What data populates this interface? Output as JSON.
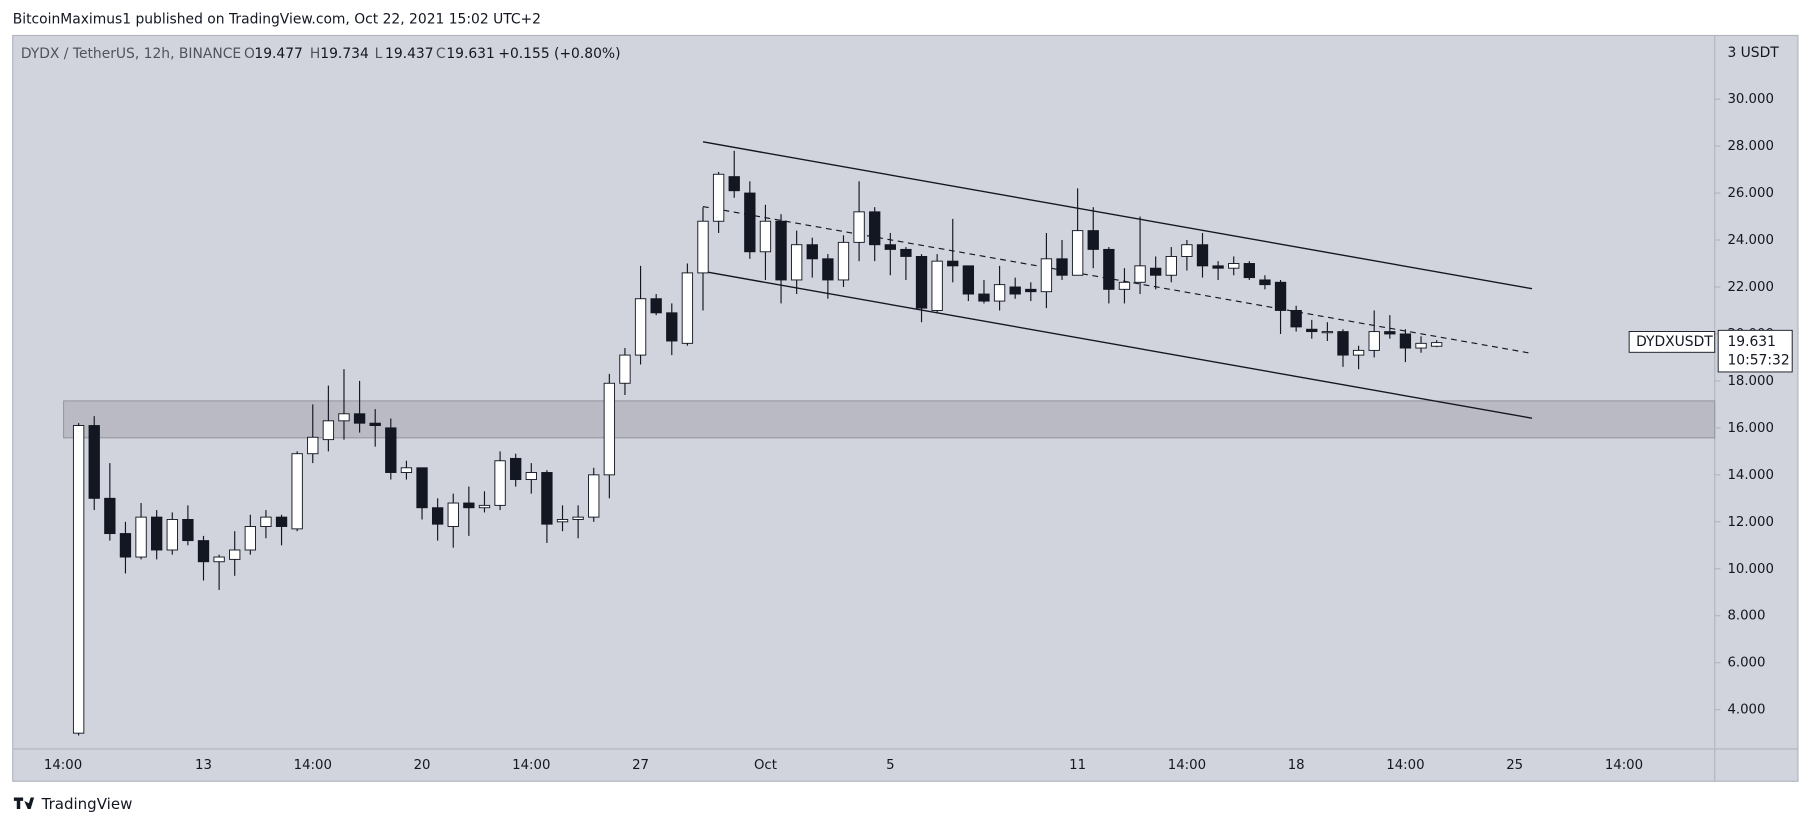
{
  "header": "BitcoinMaximus1 published on TradingView.com, Oct 22, 2021 15:02 UTC+2",
  "footer": "TradingView",
  "chart_data": {
    "type": "candlestick",
    "symbol_info": "DYDX / TetherUS, 12h, BINANCE",
    "ohlc_labels": [
      "O",
      "H",
      "L",
      "C"
    ],
    "change": "+0.155 (+0.80%)",
    "axis_currency": "3 USDT",
    "price_label": "DYDXUSDT",
    "countdown": "10:57:32",
    "grid": false,
    "up_color": "#ffffff",
    "down_color": "#131722",
    "categories": [
      "14:00",
      null,
      null,
      null,
      null,
      null,
      null,
      null,
      null,
      "13",
      null,
      null,
      null,
      null,
      null,
      null,
      "14:00",
      null,
      null,
      null,
      null,
      null,
      null,
      "20",
      null,
      null,
      null,
      null,
      null,
      null,
      "14:00",
      null,
      null,
      null,
      null,
      null,
      null,
      "27",
      null,
      null,
      null,
      null,
      null,
      null,
      null,
      "Oct",
      null,
      null,
      null,
      null,
      null,
      null,
      null,
      "5",
      null,
      null,
      null,
      null,
      null,
      null,
      null,
      null,
      null,
      null,
      null,
      "11",
      null,
      null,
      null,
      null,
      null,
      null,
      "14:00",
      null,
      null,
      null,
      null,
      null,
      null,
      "18",
      null,
      null,
      null,
      null,
      null,
      null,
      "14:00",
      null,
      null,
      null,
      null,
      null,
      null,
      "25",
      null,
      null,
      null,
      null,
      null,
      null,
      "14:00"
    ],
    "open": [
      null,
      3,
      16.1,
      13,
      11.5,
      10.5,
      12.2,
      10.8,
      12.1,
      11.2,
      10.3,
      10.4,
      10.8,
      11.8,
      12.2,
      11.7,
      14.9,
      15.5,
      16.3,
      16.6,
      16.2,
      16,
      14.1,
      14.3,
      12.6,
      11.8,
      12.8,
      12.6,
      12.7,
      14.7,
      13.8,
      14.1,
      12,
      12.1,
      12.2,
      14,
      17.9,
      19.1,
      21.5,
      20.9,
      19.6,
      22.6,
      24.8,
      26.7,
      26,
      23.5,
      24.8,
      22.3,
      23.8,
      23.2,
      22.3,
      23.9,
      25.2,
      23.8,
      23.6,
      23.3,
      21,
      23.1,
      22.9,
      21.7,
      21.4,
      22,
      21.9,
      21.8,
      23.2,
      22.5,
      24.4,
      23.6,
      21.9,
      22.2,
      22.8,
      22.5,
      23.3,
      23.8,
      22.9,
      22.8,
      23,
      22.3,
      22.2,
      21,
      20.2,
      20.1,
      20.1,
      19.1,
      19.3,
      20.1,
      20,
      19.4,
      19.477,
      null,
      null,
      null,
      null,
      null,
      null,
      null,
      null,
      null,
      null,
      null,
      null
    ],
    "high": [
      null,
      16.2,
      16.5,
      14.5,
      12,
      12.8,
      12.5,
      12.4,
      12.7,
      11.4,
      10.6,
      11.6,
      12.3,
      12.5,
      12.3,
      15,
      17,
      17.8,
      18.5,
      18,
      16.8,
      16.4,
      14.6,
      14.3,
      13,
      13.2,
      13.5,
      13.3,
      15,
      14.9,
      14.5,
      14.2,
      12.7,
      12.7,
      14.3,
      18.3,
      19.4,
      22.9,
      21.7,
      21.3,
      23,
      25.4,
      26.9,
      27.8,
      26.5,
      25.5,
      25.1,
      24.4,
      24.1,
      23.4,
      24.2,
      26.5,
      25.4,
      24.3,
      23.7,
      23.4,
      23.4,
      24.9,
      22.9,
      22.3,
      22.9,
      22.4,
      22.2,
      24.3,
      24,
      26.2,
      25.4,
      23.7,
      22.8,
      25,
      23.3,
      23.7,
      24,
      24.3,
      23.1,
      23.3,
      23.1,
      22.5,
      22.3,
      21.2,
      20.6,
      20.5,
      20.2,
      19.5,
      21,
      20.8,
      20.2,
      19.9,
      19.734,
      null,
      null,
      null,
      null,
      null,
      null,
      null,
      null,
      null,
      null,
      null,
      null
    ],
    "low": [
      null,
      2.9,
      12.5,
      11.2,
      9.8,
      10.4,
      10.4,
      10.6,
      11,
      9.5,
      9.1,
      9.7,
      10.6,
      11.3,
      11,
      11.6,
      14.5,
      15,
      15.5,
      15.8,
      15.2,
      13.8,
      13.8,
      12.1,
      11.2,
      10.9,
      11.4,
      12.4,
      12.5,
      13.5,
      13.2,
      11.1,
      11.6,
      11.3,
      12,
      13,
      17.4,
      18.7,
      20.8,
      19.1,
      19.5,
      21,
      24.3,
      25.8,
      23.2,
      22.3,
      21.3,
      21.7,
      22.4,
      21.5,
      22,
      23.1,
      23.1,
      22.5,
      22.3,
      20.5,
      20.9,
      22.2,
      21.4,
      21.3,
      21,
      21.5,
      21.4,
      21.1,
      22.3,
      22.5,
      22.8,
      21.3,
      21.3,
      21.7,
      21.9,
      22.2,
      22.7,
      22.4,
      22.3,
      22.5,
      22.3,
      21.9,
      20,
      20.1,
      19.8,
      19.7,
      18.6,
      18.5,
      19,
      19.8,
      18.8,
      19.2,
      19.437,
      null,
      null,
      null,
      null,
      null,
      null,
      null,
      null,
      null,
      null,
      null,
      null
    ],
    "close": [
      null,
      16.1,
      13,
      11.5,
      10.5,
      12.2,
      10.8,
      12.1,
      11.2,
      10.3,
      10.5,
      10.8,
      11.8,
      12.2,
      11.8,
      14.9,
      15.6,
      16.3,
      16.6,
      16.2,
      16.1,
      14.1,
      14.3,
      12.6,
      11.9,
      12.8,
      12.6,
      12.7,
      14.6,
      13.8,
      14.1,
      11.9,
      12.1,
      12.2,
      14,
      17.9,
      19.1,
      21.5,
      20.9,
      19.7,
      22.6,
      24.8,
      26.8,
      26.1,
      23.5,
      24.8,
      22.3,
      23.8,
      23.2,
      22.3,
      23.9,
      25.2,
      23.8,
      23.6,
      23.3,
      21.1,
      23.1,
      22.9,
      21.7,
      21.4,
      22.1,
      21.7,
      21.8,
      23.2,
      22.5,
      24.4,
      23.6,
      21.9,
      22.2,
      22.9,
      22.5,
      23.3,
      23.8,
      22.9,
      22.8,
      23,
      22.4,
      22.1,
      21,
      20.3,
      20.1,
      20.1,
      19.1,
      19.3,
      20.1,
      20,
      19.4,
      19.6,
      19.631,
      null,
      null,
      null,
      null,
      null,
      null,
      null,
      null,
      null,
      null,
      null,
      null
    ],
    "ylim": [
      2.33,
      32.71
    ],
    "yticks": [
      {
        "value": 4,
        "label": "4.000"
      },
      {
        "value": 6,
        "label": "6.000"
      },
      {
        "value": 8,
        "label": "8.000"
      },
      {
        "value": 10,
        "label": "10.000"
      },
      {
        "value": 12,
        "label": "12.000"
      },
      {
        "value": 14,
        "label": "14.000"
      },
      {
        "value": 16,
        "label": "16.000"
      },
      {
        "value": 18,
        "label": "18.000"
      },
      {
        "value": 20,
        "label": "20.000"
      },
      {
        "value": 22,
        "label": "22.000"
      },
      {
        "value": 24,
        "label": "24.000"
      },
      {
        "value": 26,
        "label": "26.000"
      },
      {
        "value": 28,
        "label": "28.000"
      },
      {
        "value": 30,
        "label": "30.000"
      }
    ]
  }
}
